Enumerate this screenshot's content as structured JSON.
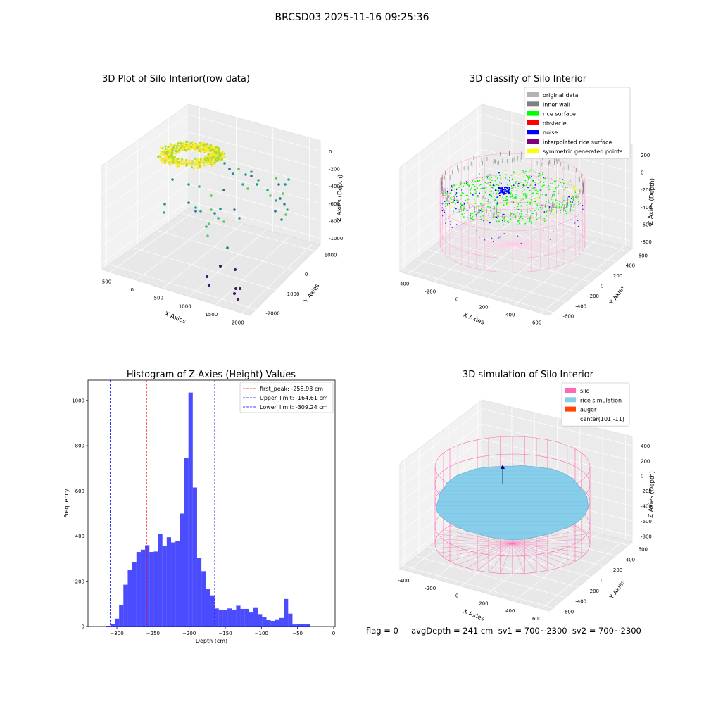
{
  "suptitle": "BRCSD03 2025-11-16 09:25:36",
  "colors": {
    "original_data": "#b3b3b3",
    "inner_wall": "#808080",
    "rice_surface": "#00ff00",
    "obstacle": "#ff0000",
    "noise": "#0000ff",
    "interpolated_rice_surface": "#800080",
    "symmetric_generated_points": "#ffff00",
    "silo": "#ff69b4",
    "rice_simulation": "#87ceeb",
    "auger": "#ff4500",
    "histogram_bar": "#0000ff"
  },
  "chart_data": [
    {
      "type": "scatter",
      "title": "3D Plot of Silo Interior(row data)",
      "xlabel": "X Axies",
      "ylabel": "Y Axies",
      "zlabel": "Z Axies (Depth)",
      "x_ticks": [
        "-500",
        "0",
        "500",
        "1000",
        "1500",
        "2000"
      ],
      "y_ticks": [
        "-2000",
        "-1000",
        "0",
        "1000"
      ],
      "z_ticks": [
        "-1000",
        "-800",
        "-600",
        "-400",
        "-200",
        "0"
      ],
      "colormap": "viridis",
      "grid": true
    },
    {
      "type": "scatter",
      "title": "3D classify of Silo Interior",
      "xlabel": "X Axies",
      "ylabel": "Y Axies",
      "zlabel": "Z Axies (Depth)",
      "x_ticks": [
        "-400",
        "-200",
        "0",
        "200",
        "400",
        "600"
      ],
      "y_ticks": [
        "-600",
        "-400",
        "-200",
        "0",
        "200",
        "400",
        "600"
      ],
      "z_ticks": [
        "-800",
        "-600",
        "-400",
        "-200",
        "0",
        "200"
      ],
      "legend_position": "top-right",
      "legend": [
        {
          "label": "original data",
          "color": "#b3b3b3"
        },
        {
          "label": "inner wall",
          "color": "#808080"
        },
        {
          "label": "rice surface",
          "color": "#00ff00"
        },
        {
          "label": "obstacle",
          "color": "#ff0000"
        },
        {
          "label": "noise",
          "color": "#0000ff"
        },
        {
          "label": "interpolated rice surface",
          "color": "#800080"
        },
        {
          "label": "symmetric generated points",
          "color": "#ffff00"
        }
      ],
      "grid": true
    },
    {
      "type": "bar",
      "title": "Histogram of Z-Axies (Height) Values",
      "xlabel": "Depth (cm)",
      "ylabel": "Frequency",
      "xlim": [
        -340,
        2
      ],
      "ylim": [
        0,
        1090
      ],
      "x_ticks": [
        -300,
        -250,
        -200,
        -150,
        -100,
        -50,
        0
      ],
      "y_ticks": [
        0,
        200,
        400,
        600,
        800,
        1000
      ],
      "bin_start": -315,
      "bin_width": 6,
      "values": [
        3,
        12,
        35,
        95,
        185,
        250,
        285,
        330,
        340,
        360,
        330,
        332,
        410,
        355,
        395,
        372,
        378,
        500,
        745,
        1035,
        615,
        305,
        245,
        165,
        138,
        80,
        75,
        72,
        80,
        75,
        92,
        78,
        78,
        62,
        85,
        55,
        42,
        30,
        25,
        32,
        38,
        122,
        57,
        9,
        10,
        12,
        12
      ],
      "vlines": [
        {
          "x": -258.93,
          "color": "#ff0000",
          "label": "first_peak: -258.93 cm"
        },
        {
          "x": -164.61,
          "color": "#0000ff",
          "label": "Upper_limit: -164.61 cm"
        },
        {
          "x": -309.24,
          "color": "#0000ff",
          "label": "Lower_limit: -309.24 cm"
        }
      ],
      "legend_position": "top-right"
    },
    {
      "type": "area",
      "title": "3D simulation of Silo Interior",
      "xlabel": "X Axies",
      "ylabel": "Y Axies",
      "zlabel": "Z Axies (Depth)",
      "x_ticks": [
        "-400",
        "-200",
        "0",
        "200",
        "400",
        "600"
      ],
      "y_ticks": [
        "-600",
        "-400",
        "-200",
        "0",
        "200",
        "400",
        "600"
      ],
      "z_ticks": [
        "-800",
        "-600",
        "-400",
        "-200",
        "0",
        "200",
        "400"
      ],
      "legend_position": "top-right",
      "legend": [
        {
          "label": "silo",
          "color": "#ff69b4"
        },
        {
          "label": "rice simulation",
          "color": "#87ceeb"
        },
        {
          "label": "auger",
          "color": "#ff4500"
        },
        {
          "label": "center(101,-11)",
          "color": ""
        }
      ],
      "grid": true
    }
  ],
  "footer": "flag = 0     avgDepth = 241 cm  sv1 = 700~2300  sv2 = 700~2300"
}
